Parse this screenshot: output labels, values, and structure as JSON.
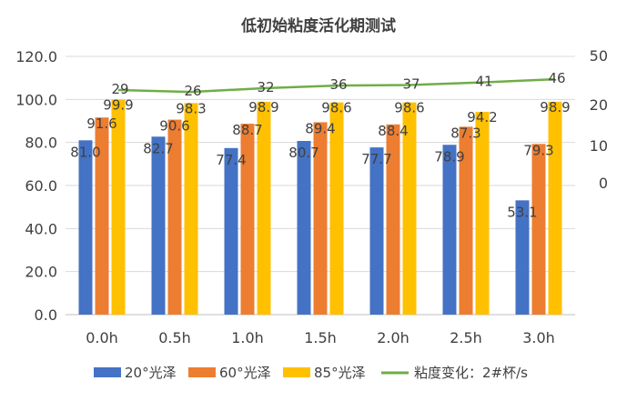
{
  "chart_data": {
    "type": "bar",
    "title": "低初始粘度活化期测试",
    "categories": [
      "0.0h",
      "0.5h",
      "1.0h",
      "1.5h",
      "2.0h",
      "2.5h",
      "3.0h"
    ],
    "y_left": {
      "ticks": [
        "0.0",
        "20.0",
        "40.0",
        "60.0",
        "80.0",
        "100.0",
        "120.0"
      ],
      "min": 0,
      "max": 120
    },
    "y_right": {
      "ticks": [
        "0",
        "10",
        "20",
        "50"
      ]
    },
    "series": [
      {
        "name": "20°光泽",
        "color": "#4472C4",
        "values": [
          81.0,
          82.7,
          77.4,
          80.7,
          77.7,
          78.9,
          53.1
        ],
        "labels": [
          "81.0",
          "82.7",
          "77.4",
          "80.7",
          "77.7",
          "78.9",
          "53.1"
        ]
      },
      {
        "name": "60°光泽",
        "color": "#ED7D31",
        "values": [
          91.6,
          90.6,
          88.7,
          89.4,
          88.4,
          87.3,
          79.3
        ],
        "labels": [
          "91.6",
          "90.6",
          "88.7",
          "89.4",
          "88.4",
          "87.3",
          "79.3"
        ]
      },
      {
        "name": "85°光泽",
        "color": "#FFC000",
        "values": [
          99.9,
          98.3,
          98.9,
          98.6,
          98.6,
          94.2,
          98.9
        ],
        "labels": [
          "99.9",
          "98.3",
          "98.9",
          "98.6",
          "98.6",
          "94.2",
          "98.9"
        ]
      }
    ],
    "line_series": {
      "name": "粘度变化：2#杯/s",
      "color": "#70AD47",
      "axis": "right",
      "values": [
        29,
        26,
        32,
        36,
        37,
        41,
        46
      ],
      "labels": [
        "29",
        "26",
        "32",
        "36",
        "37",
        "41",
        "46"
      ]
    },
    "grid": true,
    "legend": "bottom"
  }
}
